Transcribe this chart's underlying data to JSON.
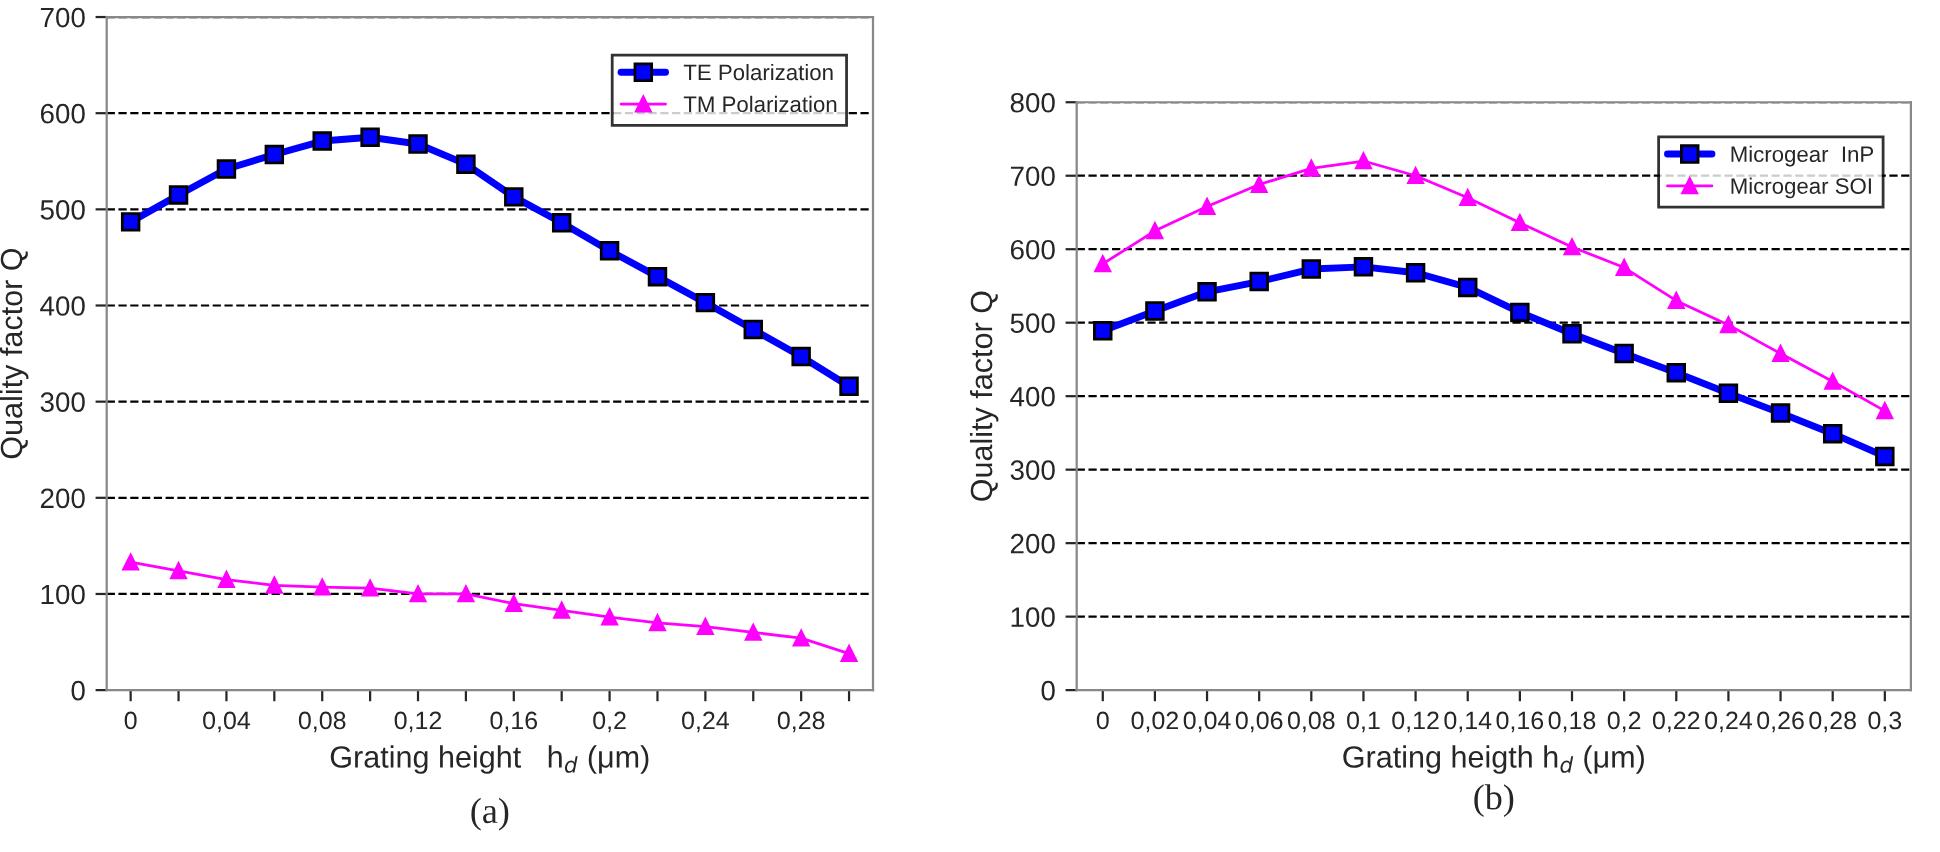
{
  "chart_data": [
    {
      "type": "line",
      "xlabel": "Grating height   h$_{d}$ (μm)",
      "ylabel": "Quality factor Q",
      "categories": [
        "0",
        null,
        "0,04",
        null,
        "0,08",
        null,
        "0,12",
        null,
        "0,16",
        null,
        "0,2",
        null,
        "0,24",
        null,
        "0,28",
        null
      ],
      "ylim": [
        0,
        700
      ],
      "yticks": [
        0,
        100,
        200,
        300,
        400,
        500,
        600,
        700
      ],
      "grid": "y",
      "legend": "top right",
      "annotations": [
        "(a)"
      ],
      "series": [
        {
          "name": "TE Polarization",
          "color": "#0000ff",
          "marker": "square",
          "values": [
            487,
            515,
            542,
            557,
            571,
            575,
            568,
            547,
            513,
            486,
            457,
            430,
            403,
            375,
            347,
            316
          ]
        },
        {
          "name": "TM Polarization",
          "color": "#ff00ff",
          "marker": "triangle",
          "values": [
            133,
            124,
            115,
            109,
            107,
            106,
            100,
            100,
            90,
            83,
            76,
            70,
            66,
            60,
            54,
            38
          ]
        }
      ]
    },
    {
      "type": "line",
      "xlabel": "Grating heigth h$_{d}$ (μm)",
      "ylabel": "Quality factor Q",
      "categories": [
        "0",
        "0,02",
        "0,04",
        "0,06",
        "0,08",
        "0,1",
        "0,12",
        "0,14",
        "0,16",
        "0,18",
        "0,2",
        "0,22",
        "0,24",
        "0,26",
        "0,28",
        "0,3"
      ],
      "ylim": [
        0,
        800
      ],
      "yticks": [
        0,
        100,
        200,
        300,
        400,
        500,
        600,
        700,
        800
      ],
      "grid": "y",
      "legend": "top right",
      "annotations": [
        "(b)"
      ],
      "series": [
        {
          "name": "Microgear  InP",
          "color": "#0000ff",
          "marker": "square",
          "values": [
            489,
            516,
            542,
            556,
            573,
            576,
            568,
            548,
            514,
            485,
            458,
            432,
            404,
            377,
            349,
            318
          ]
        },
        {
          "name": "Microgear SOI",
          "color": "#ff00ff",
          "marker": "triangle",
          "values": [
            580,
            625,
            658,
            688,
            710,
            720,
            700,
            670,
            636,
            603,
            575,
            530,
            497,
            458,
            420,
            380
          ]
        }
      ]
    }
  ]
}
